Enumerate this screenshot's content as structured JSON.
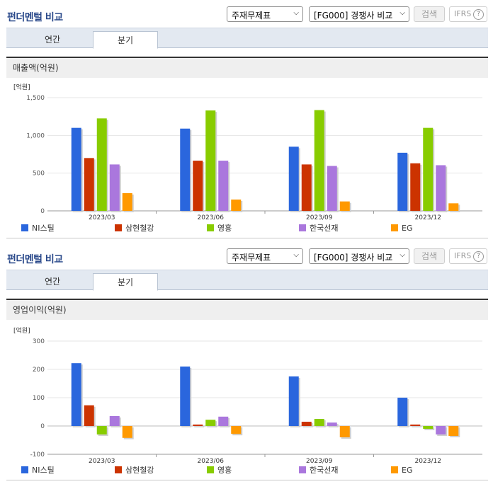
{
  "panels": [
    {
      "title": "펀더멘털 비교",
      "select_statement": "주재무제표",
      "select_compare": "[FG000] 경쟁사 비교",
      "search_label": "검색",
      "ifrs_label": "IFRS",
      "help_label": "?",
      "tabs": [
        "연간",
        "분기"
      ],
      "active_tab": 1,
      "metric_label": "매출액(억원)"
    },
    {
      "title": "펀더멘털 비교",
      "select_statement": "주재무제표",
      "select_compare": "[FG000] 경쟁사 비교",
      "search_label": "검색",
      "ifrs_label": "IFRS",
      "help_label": "?",
      "tabs": [
        "연간",
        "분기"
      ],
      "active_tab": 1,
      "metric_label": "영업이익(억원)"
    }
  ],
  "colors": {
    "series": [
      "#2a66dd",
      "#cc3300",
      "#88cc00",
      "#aa77dd",
      "#ff9900"
    ],
    "grid": "#e4e4e4",
    "axis": "#999999"
  },
  "chart_data": [
    {
      "type": "bar",
      "unit_label": "[억원]",
      "categories": [
        "2023/03",
        "2023/06",
        "2023/09",
        "2023/12"
      ],
      "ylim": [
        0,
        1500
      ],
      "yticks": [
        0,
        500,
        1000,
        1500
      ],
      "ytick_labels": [
        "0",
        "500",
        "1,000",
        "1,500"
      ],
      "grid": true,
      "legend_position": "bottom",
      "series": [
        {
          "name": "NI스틸",
          "values": [
            1100,
            1090,
            850,
            770
          ]
        },
        {
          "name": "삼현철강",
          "values": [
            700,
            665,
            615,
            630
          ]
        },
        {
          "name": "영흥",
          "values": [
            1225,
            1330,
            1335,
            1100
          ]
        },
        {
          "name": "한국선재",
          "values": [
            615,
            665,
            595,
            605
          ]
        },
        {
          "name": "EG",
          "values": [
            235,
            150,
            125,
            100
          ]
        }
      ]
    },
    {
      "type": "bar",
      "unit_label": "[억원]",
      "categories": [
        "2023/03",
        "2023/06",
        "2023/09",
        "2023/12"
      ],
      "ylim": [
        -100,
        300
      ],
      "yticks": [
        -100,
        0,
        100,
        200,
        300
      ],
      "ytick_labels": [
        "-100",
        "0",
        "100",
        "200",
        "300"
      ],
      "grid": true,
      "legend_position": "bottom",
      "series": [
        {
          "name": "NI스틸",
          "values": [
            222,
            210,
            175,
            100
          ]
        },
        {
          "name": "삼현철강",
          "values": [
            73,
            5,
            15,
            5
          ]
        },
        {
          "name": "영흥",
          "values": [
            -30,
            22,
            25,
            -10
          ]
        },
        {
          "name": "한국선재",
          "values": [
            35,
            33,
            12,
            -30
          ]
        },
        {
          "name": "EG",
          "values": [
            -42,
            -28,
            -40,
            -35
          ]
        }
      ]
    }
  ]
}
